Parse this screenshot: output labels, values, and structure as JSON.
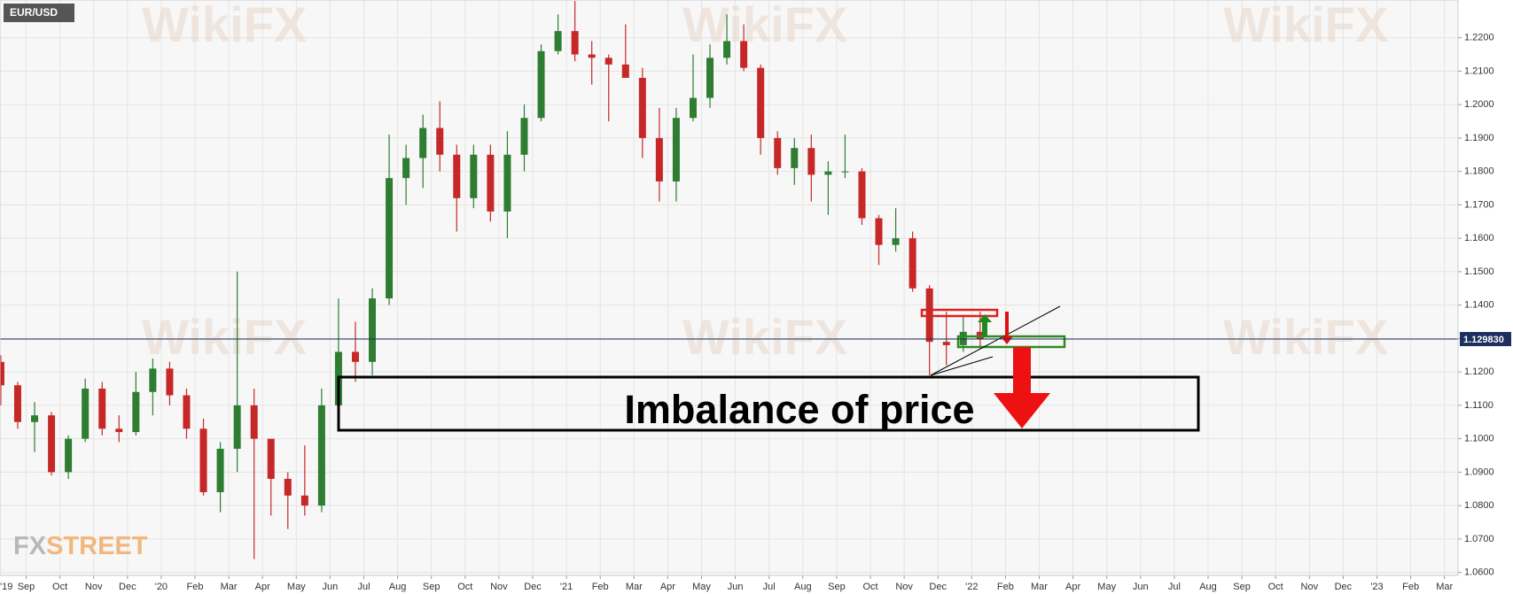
{
  "chart_data": {
    "type": "candlestick",
    "symbol": "EUR/USD",
    "annotation": "Imbalance of price",
    "logo": {
      "left": "FX",
      "right": "STREET"
    },
    "watermark": "WikiFX",
    "categories": [
      "'19",
      null,
      "Sep",
      null,
      "Oct",
      null,
      "Nov",
      null,
      "Dec",
      null,
      "'20",
      null,
      "Feb",
      null,
      "Mar",
      null,
      "Apr",
      null,
      "May",
      null,
      "Jun",
      null,
      "Jul",
      null,
      "Aug",
      null,
      "Sep",
      null,
      "Oct",
      null,
      "Nov",
      null,
      "Dec",
      null,
      "'21",
      null,
      "Feb",
      null,
      "Mar",
      null,
      "Apr",
      null,
      "May",
      null,
      "Jun",
      null,
      "Jul",
      null,
      "Aug",
      null,
      "Sep",
      null,
      "Oct",
      null,
      "Nov",
      null,
      "Dec",
      null,
      "'22",
      null,
      "Feb",
      null,
      "Mar",
      null,
      "Apr",
      null,
      "May",
      null,
      "Jun",
      null,
      "Jul",
      null,
      "Aug",
      null,
      "Sep",
      null,
      "Oct",
      null,
      "Nov",
      null,
      "Dec",
      null,
      "'23",
      null,
      "Feb",
      null,
      "Mar",
      null
    ],
    "open": [
      1.123,
      1.116,
      1.105,
      1.107,
      1.09,
      1.1,
      1.115,
      1.103,
      1.102,
      1.114,
      1.121,
      1.113,
      1.103,
      1.084,
      1.097,
      1.11,
      1.1,
      1.088,
      1.083,
      1.08,
      1.11,
      1.126,
      1.123,
      1.142,
      1.178,
      1.184,
      1.193,
      1.185,
      1.172,
      1.185,
      1.168,
      1.185,
      1.196,
      1.216,
      1.222,
      1.215,
      1.214,
      1.212,
      1.208,
      1.19,
      1.177,
      1.196,
      1.202,
      1.214,
      1.219,
      1.211,
      1.19,
      1.181,
      1.187,
      1.179,
      1.18,
      1.18,
      1.166,
      1.158,
      1.16,
      1.145,
      1.129,
      1.128,
      1.132,
      null,
      null,
      null,
      null,
      null,
      null,
      null,
      null,
      null,
      null,
      null,
      null,
      null,
      null,
      null,
      null,
      null,
      null,
      null,
      null,
      null,
      null,
      null,
      null,
      null,
      null,
      null,
      null,
      null
    ],
    "high": [
      1.125,
      1.117,
      1.111,
      1.108,
      1.101,
      1.118,
      1.117,
      1.107,
      1.12,
      1.124,
      1.123,
      1.115,
      1.106,
      1.099,
      1.15,
      1.115,
      1.1,
      1.09,
      1.098,
      1.115,
      1.142,
      1.135,
      1.145,
      1.191,
      1.188,
      1.197,
      1.201,
      1.188,
      1.188,
      1.188,
      1.192,
      1.2,
      1.218,
      1.227,
      1.231,
      1.219,
      1.215,
      1.224,
      1.211,
      1.199,
      1.199,
      1.215,
      1.218,
      1.227,
      1.224,
      1.212,
      1.192,
      1.19,
      1.191,
      1.183,
      1.191,
      1.181,
      1.167,
      1.169,
      1.162,
      1.146,
      1.138,
      1.137,
      1.138,
      null,
      null,
      null,
      null,
      null,
      null,
      null,
      null,
      null,
      null,
      null,
      null,
      null,
      null,
      null,
      null,
      null,
      null,
      null,
      null,
      null,
      null,
      null,
      null,
      null,
      null,
      null,
      null,
      null
    ],
    "low": [
      1.11,
      1.103,
      1.096,
      1.089,
      1.088,
      1.099,
      1.101,
      1.099,
      1.101,
      1.107,
      1.11,
      1.1,
      1.083,
      1.078,
      1.09,
      1.064,
      1.077,
      1.073,
      1.077,
      1.078,
      1.109,
      1.117,
      1.119,
      1.14,
      1.17,
      1.175,
      1.18,
      1.162,
      1.169,
      1.165,
      1.16,
      1.18,
      1.195,
      1.215,
      1.213,
      1.206,
      1.195,
      1.208,
      1.184,
      1.171,
      1.171,
      1.195,
      1.199,
      1.212,
      1.21,
      1.185,
      1.179,
      1.176,
      1.171,
      1.167,
      1.178,
      1.164,
      1.152,
      1.156,
      1.144,
      1.119,
      1.122,
      1.126,
      1.127,
      null,
      null,
      null,
      null,
      null,
      null,
      null,
      null,
      null,
      null,
      null,
      null,
      null,
      null,
      null,
      null,
      null,
      null,
      null,
      null,
      null,
      null,
      null,
      null,
      null,
      null,
      null,
      null,
      null
    ],
    "close": [
      1.116,
      1.105,
      1.107,
      1.09,
      1.1,
      1.115,
      1.103,
      1.102,
      1.114,
      1.121,
      1.113,
      1.103,
      1.084,
      1.097,
      1.11,
      1.1,
      1.088,
      1.083,
      1.08,
      1.11,
      1.126,
      1.123,
      1.142,
      1.178,
      1.184,
      1.193,
      1.185,
      1.172,
      1.185,
      1.168,
      1.185,
      1.196,
      1.216,
      1.222,
      1.215,
      1.214,
      1.212,
      1.208,
      1.19,
      1.177,
      1.196,
      1.202,
      1.214,
      1.219,
      1.211,
      1.19,
      1.181,
      1.187,
      1.179,
      1.18,
      1.18,
      1.166,
      1.158,
      1.16,
      1.145,
      1.129,
      1.128,
      1.132,
      1.1298,
      null,
      null,
      null,
      null,
      null,
      null,
      null,
      null,
      null,
      null,
      null,
      null,
      null,
      null,
      null,
      null,
      null,
      null,
      null,
      null,
      null,
      null,
      null,
      null,
      null,
      null,
      null,
      null,
      null
    ],
    "up_color": "#2e7d32",
    "down_color": "#c62828",
    "last_price": {
      "value": 1.12983,
      "label": "1.129830"
    },
    "ylim": [
      1.0591,
      1.2313
    ],
    "yticks": [
      {
        "value": 1.06,
        "label": "1.0600"
      },
      {
        "value": 1.07,
        "label": "1.0700"
      },
      {
        "value": 1.08,
        "label": "1.0800"
      },
      {
        "value": 1.09,
        "label": "1.0900"
      },
      {
        "value": 1.1,
        "label": "1.1000"
      },
      {
        "value": 1.11,
        "label": "1.1100"
      },
      {
        "value": 1.12,
        "label": "1.1200"
      },
      {
        "value": 1.13,
        "label": "1.1300"
      },
      {
        "value": 1.14,
        "label": "1.1400"
      },
      {
        "value": 1.15,
        "label": "1.1500"
      },
      {
        "value": 1.16,
        "label": "1.1600"
      },
      {
        "value": 1.17,
        "label": "1.1700"
      },
      {
        "value": 1.18,
        "label": "1.1800"
      },
      {
        "value": 1.19,
        "label": "1.1900"
      },
      {
        "value": 1.2,
        "label": "1.2000"
      },
      {
        "value": 1.21,
        "label": "1.2100"
      },
      {
        "value": 1.22,
        "label": "1.2200"
      }
    ],
    "grid": true
  }
}
